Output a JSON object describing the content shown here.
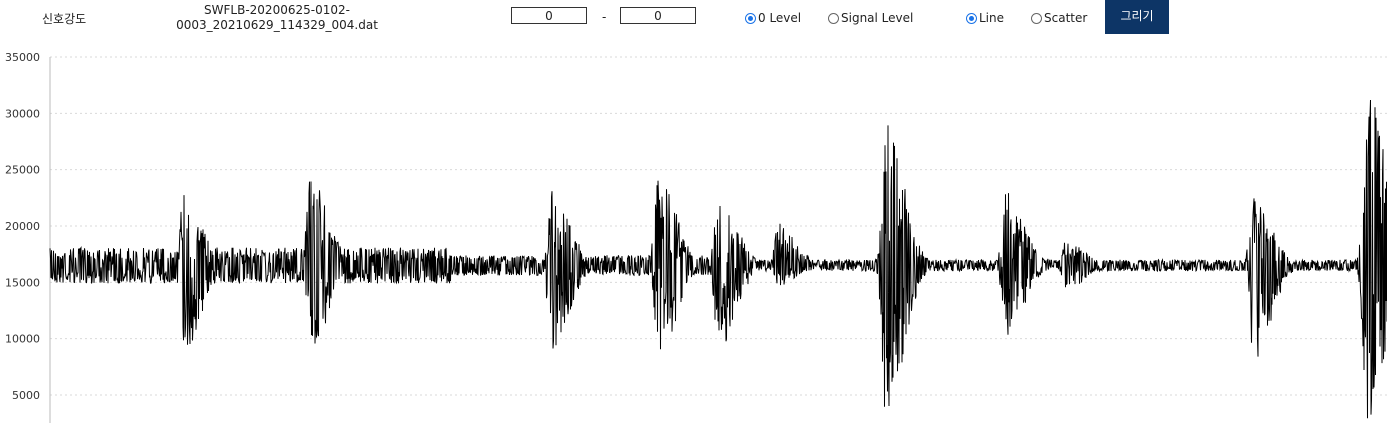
{
  "toolbar": {
    "signal_label": "신호강도",
    "filename_line1": "SWFLB-20200625-0102-",
    "filename_line2": "0003_20210629_114329_004.dat",
    "range_from": "0",
    "range_separator": "-",
    "range_to": "0",
    "radio_zero_level": "0 Level",
    "radio_signal_level": "Signal Level",
    "radio_line": "Line",
    "radio_scatter": "Scatter",
    "draw_button": "그리기",
    "selected_level": "0 Level",
    "selected_mode": "Line"
  },
  "colors": {
    "button_bg": "#0d3566",
    "line": "#000000",
    "grid": "#d9d9d9",
    "radio_on": "#1a73e8"
  },
  "chart_data": {
    "type": "line",
    "yticks": [
      35000,
      30000,
      25000,
      20000,
      15000,
      10000,
      5000
    ],
    "ylim": [
      2500,
      35000
    ],
    "grid": true,
    "baseline": 16500,
    "series": [
      {
        "description_note": "",
        "bursts": [
          {
            "x": 0.1,
            "max": 23300,
            "min": 8800
          },
          {
            "x": 0.195,
            "max": 24400,
            "min": 8900
          },
          {
            "x": 0.375,
            "max": 23600,
            "min": 8900
          },
          {
            "x": 0.455,
            "max": 24600,
            "min": 8100
          },
          {
            "x": 0.5,
            "max": 23200,
            "min": 9000
          },
          {
            "x": 0.545,
            "max": 20300,
            "min": 14700
          },
          {
            "x": 0.625,
            "max": 29600,
            "min": 2700
          },
          {
            "x": 0.715,
            "max": 23000,
            "min": 10000
          },
          {
            "x": 0.76,
            "max": 18700,
            "min": 14200
          },
          {
            "x": 0.9,
            "max": 22800,
            "min": 8000
          },
          {
            "x": 0.985,
            "max": 32900,
            "min": 2700
          }
        ]
      }
    ]
  }
}
